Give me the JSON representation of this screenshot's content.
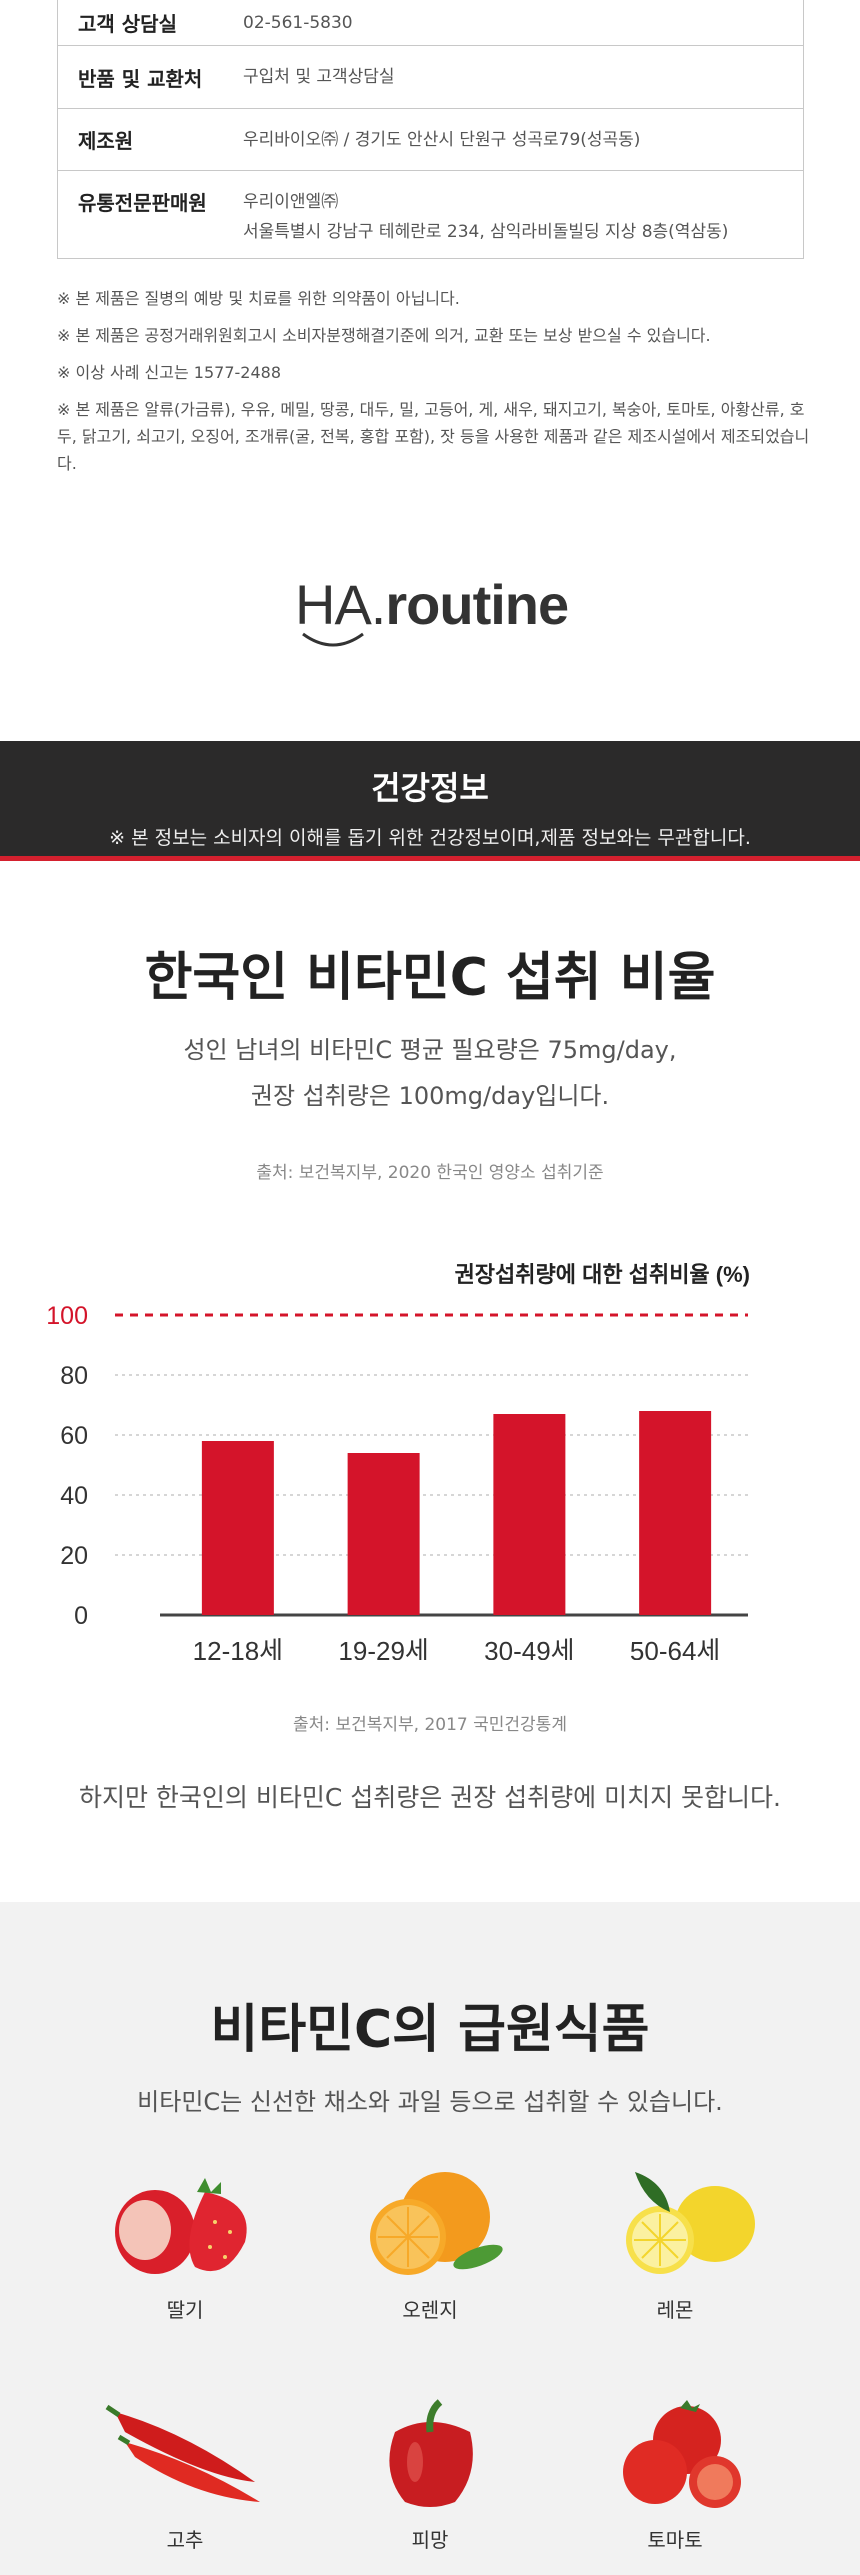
{
  "info": [
    {
      "key": "고객 상담실",
      "value": "02-561-5830"
    },
    {
      "key": "반품 및 교환처",
      "value": "구입처 및 고객상담실"
    },
    {
      "key": "제조원",
      "value": "우리바이오㈜ / 경기도 안산시 단원구 성곡로79(성곡동)"
    },
    {
      "key": "유통전문판매원",
      "value": "우리이앤엘㈜",
      "value2": "서울특별시 강남구 테헤란로 234, 삼익라비돌빌딩 지상 8층(역삼동)"
    }
  ],
  "notes": [
    "※ 본 제품은 질병의 예방 및 치료를 위한 의약품이 아닙니다.",
    "※ 본 제품은 공정거래위원회고시 소비자분쟁해결기준에 의거, 교환 또는 보상 받으실 수 있습니다.",
    "※ 이상 사례 신고는 1577-2488",
    "※ 본 제품은 알류(가금류), 우유, 메밀, 땅콩, 대두, 밀, 고등어, 게, 새우, 돼지고기, 복숭아, 토마토, 아황산류, 호두, 닭고기, 쇠고기, 오징어, 조개류(굴, 전복, 홍합 포함), 잣 등을 사용한 제품과 같은 제조시설에서 제조되었습니다."
  ],
  "logo": {
    "ha": "HA",
    "dot": ".",
    "routine": "routine"
  },
  "banner": {
    "title": "건강정보",
    "subtitle": "※ 본 정보는 소비자의 이해를 돕기 위한 건강정보이며,제품 정보와는 무관합니다."
  },
  "intake": {
    "title": "한국인 비타민C 섭취 비율",
    "desc1": "성인 남녀의 비타민C 평균 필요량은 75mg/day,",
    "desc2": "권장 섭취량은 100mg/day입니다.",
    "source1": "출처: 보건복지부, 2020 한국인 영양소 섭취기준",
    "source2": "출처: 보건복지부, 2017 국민건강통계",
    "conclusion": "하지만 한국인의 비타민C 섭취량은 권장 섭취량에 미치지 못합니다."
  },
  "chart_data": {
    "type": "bar",
    "title": "권장섭취량에 대한 섭취비율 (%)",
    "categories": [
      "12-18세",
      "19-29세",
      "30-49세",
      "50-64세"
    ],
    "values": [
      58,
      54,
      67,
      68
    ],
    "ylim": [
      0,
      100
    ],
    "yticks": [
      "100",
      "80",
      "60",
      "40",
      "20",
      "0"
    ],
    "reference_line": 100,
    "bar_color": "#d4142a",
    "reference_color": "#d4142a"
  },
  "sources": {
    "title": "비타민C의 급원식품",
    "desc": "비타민C는 신선한 채소와 과일 등으로 섭취할 수 있습니다.",
    "foods": [
      {
        "name": "딸기",
        "icon": "strawberry-icon"
      },
      {
        "name": "오렌지",
        "icon": "orange-icon"
      },
      {
        "name": "레몬",
        "icon": "lemon-icon"
      },
      {
        "name": "고추",
        "icon": "chili-pepper-icon"
      },
      {
        "name": "피망",
        "icon": "bell-pepper-icon"
      },
      {
        "name": "토마토",
        "icon": "tomato-icon"
      }
    ]
  }
}
